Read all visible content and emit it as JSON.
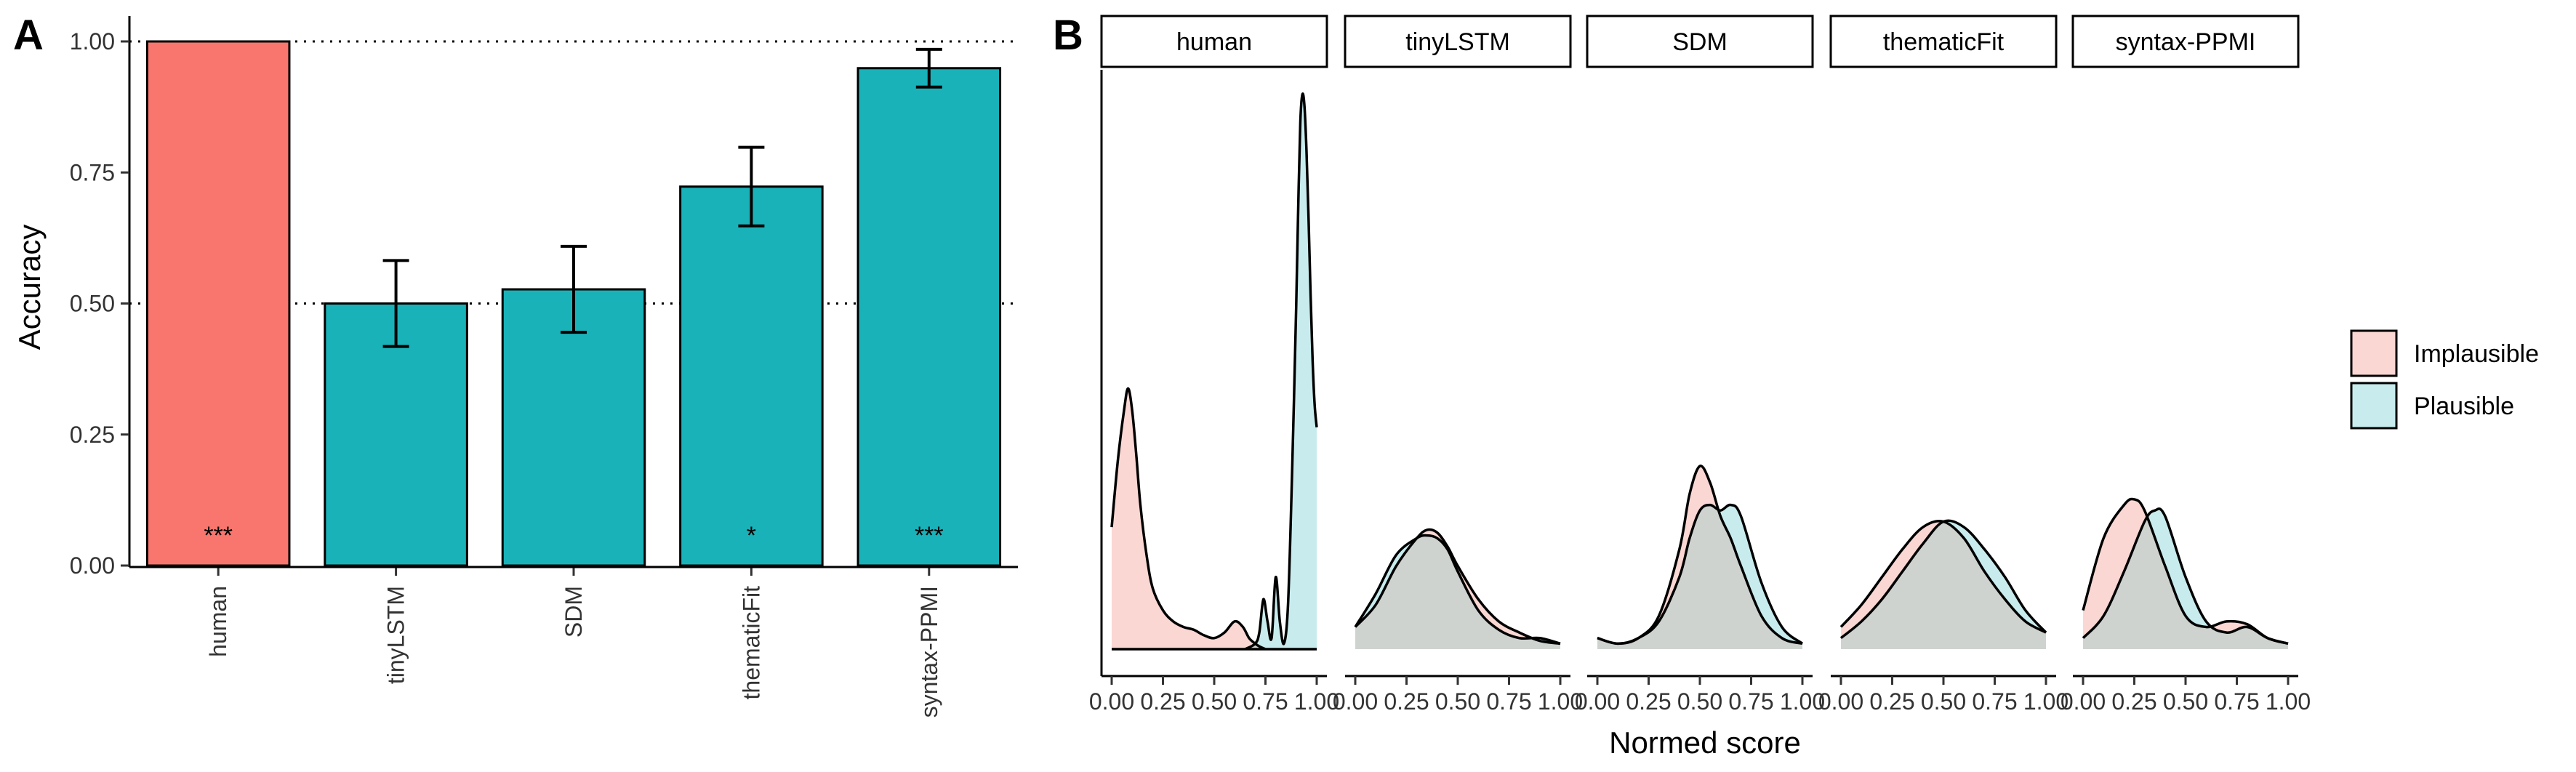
{
  "panel_a": {
    "letter": "A",
    "chart_data": {
      "type": "bar",
      "categories": [
        "human",
        "tinyLSTM",
        "SDM",
        "thematicFit",
        "syntax-PPMI"
      ],
      "values": [
        1.0,
        0.5,
        0.527,
        0.723,
        0.949
      ],
      "error_low": [
        1.0,
        0.418,
        0.445,
        0.648,
        0.913
      ],
      "error_high": [
        1.0,
        0.582,
        0.609,
        0.798,
        0.985
      ],
      "significance": [
        "***",
        "",
        "",
        "*",
        "***"
      ],
      "bar_colors": [
        "#f8766d",
        "#19b2b9",
        "#19b2b9",
        "#19b2b9",
        "#19b2b9"
      ],
      "ylabel": "Accuracy",
      "ylim": [
        0,
        1
      ],
      "yticks": [
        "0.00",
        "0.25",
        "0.50",
        "0.75",
        "1.00"
      ],
      "reference_lines": [
        {
          "y": 1.0,
          "style": "dotted"
        },
        {
          "y": 0.5,
          "style": "dotted"
        }
      ],
      "grid": false
    }
  },
  "panel_b": {
    "letter": "B",
    "chart_data": {
      "type": "area",
      "facets": [
        "human",
        "tinyLSTM",
        "SDM",
        "thematicFit",
        "syntax-PPMI"
      ],
      "x": [
        0,
        0.05,
        0.1,
        0.15,
        0.2,
        0.25,
        0.3,
        0.35,
        0.4,
        0.45,
        0.5,
        0.55,
        0.6,
        0.65,
        0.7,
        0.75,
        0.8,
        0.85,
        0.9,
        0.95,
        1.0
      ],
      "xticks": [
        "0.00",
        "0.25",
        "0.50",
        "0.75",
        "1.00"
      ],
      "xlim": [
        0,
        1
      ],
      "xlabel": "Normed score",
      "ylim": [
        0,
        1
      ],
      "series_colors": {
        "Implausible": "#fad7d3",
        "Plausible": "#c8ecee",
        "overlap": "#cfd3d0"
      },
      "legend": {
        "position": "right",
        "entries": [
          "Implausible",
          "Plausible"
        ],
        "colors": [
          "#fad7d3",
          "#c8ecee"
        ]
      },
      "densities": [
        {
          "facet": "human",
          "series": [
            {
              "name": "Implausible",
              "x": [
                0,
                0.03,
                0.06,
                0.08,
                0.1,
                0.12,
                0.14,
                0.17,
                0.2,
                0.25,
                0.3,
                0.35,
                0.4,
                0.45,
                0.5,
                0.55,
                0.6,
                0.64,
                0.67,
                0.7,
                0.72,
                0.75
              ],
              "y": [
                0.22,
                0.34,
                0.43,
                0.47,
                0.43,
                0.35,
                0.26,
                0.17,
                0.11,
                0.07,
                0.05,
                0.04,
                0.035,
                0.025,
                0.02,
                0.03,
                0.05,
                0.04,
                0.02,
                0.01,
                0.005,
                0.0
              ]
            },
            {
              "name": "Plausible",
              "x": [
                0.65,
                0.7,
                0.72,
                0.74,
                0.76,
                0.78,
                0.8,
                0.82,
                0.84,
                0.86,
                0.88,
                0.9,
                0.91,
                0.92,
                0.93,
                0.94,
                0.95,
                0.96,
                0.97,
                0.98,
                0.99,
                1.0
              ],
              "y": [
                0.0,
                0.01,
                0.03,
                0.09,
                0.05,
                0.02,
                0.13,
                0.05,
                0.01,
                0.08,
                0.32,
                0.62,
                0.8,
                0.95,
                1.0,
                0.98,
                0.9,
                0.78,
                0.64,
                0.52,
                0.44,
                0.4
              ]
            }
          ]
        },
        {
          "facet": "tinyLSTM",
          "series": [
            {
              "name": "Implausible",
              "x": [
                0,
                0.1,
                0.2,
                0.3,
                0.35,
                0.4,
                0.45,
                0.5,
                0.6,
                0.7,
                0.8,
                0.9,
                1.0
              ],
              "y": [
                0.04,
                0.08,
                0.15,
                0.2,
                0.215,
                0.21,
                0.185,
                0.15,
                0.09,
                0.05,
                0.03,
                0.015,
                0.01
              ]
            },
            {
              "name": "Plausible",
              "x": [
                0,
                0.1,
                0.2,
                0.3,
                0.35,
                0.4,
                0.45,
                0.5,
                0.6,
                0.7,
                0.8,
                0.9,
                1.0
              ],
              "y": [
                0.04,
                0.1,
                0.17,
                0.2,
                0.205,
                0.2,
                0.18,
                0.14,
                0.07,
                0.035,
                0.02,
                0.02,
                0.01
              ]
            }
          ]
        },
        {
          "facet": "SDM",
          "series": [
            {
              "name": "Implausible",
              "x": [
                0,
                0.1,
                0.2,
                0.3,
                0.4,
                0.45,
                0.5,
                0.55,
                0.6,
                0.65,
                0.7,
                0.8,
                0.9,
                1.0
              ],
              "y": [
                0.02,
                0.01,
                0.02,
                0.06,
                0.18,
                0.28,
                0.33,
                0.3,
                0.24,
                0.2,
                0.15,
                0.06,
                0.02,
                0.01
              ]
            },
            {
              "name": "Plausible",
              "x": [
                0,
                0.1,
                0.2,
                0.3,
                0.4,
                0.45,
                0.5,
                0.55,
                0.6,
                0.65,
                0.7,
                0.8,
                0.9,
                1.0
              ],
              "y": [
                0.02,
                0.01,
                0.02,
                0.05,
                0.13,
                0.2,
                0.25,
                0.26,
                0.25,
                0.26,
                0.24,
                0.12,
                0.04,
                0.01
              ]
            }
          ]
        },
        {
          "facet": "thematicFit",
          "series": [
            {
              "name": "Implausible",
              "x": [
                0,
                0.1,
                0.2,
                0.3,
                0.4,
                0.5,
                0.6,
                0.7,
                0.8,
                0.9,
                1.0
              ],
              "y": [
                0.04,
                0.08,
                0.13,
                0.18,
                0.22,
                0.23,
                0.2,
                0.14,
                0.09,
                0.05,
                0.03
              ]
            },
            {
              "name": "Plausible",
              "x": [
                0,
                0.1,
                0.2,
                0.3,
                0.4,
                0.5,
                0.6,
                0.7,
                0.8,
                0.9,
                1.0
              ],
              "y": [
                0.02,
                0.05,
                0.09,
                0.14,
                0.19,
                0.23,
                0.22,
                0.18,
                0.13,
                0.07,
                0.03
              ]
            }
          ]
        },
        {
          "facet": "syntax-PPMI",
          "series": [
            {
              "name": "Implausible",
              "x": [
                0,
                0.1,
                0.2,
                0.25,
                0.3,
                0.4,
                0.5,
                0.6,
                0.7,
                0.8,
                0.9,
                1.0
              ],
              "y": [
                0.07,
                0.2,
                0.26,
                0.27,
                0.25,
                0.15,
                0.06,
                0.04,
                0.05,
                0.045,
                0.02,
                0.01
              ]
            },
            {
              "name": "Plausible",
              "x": [
                0,
                0.1,
                0.2,
                0.3,
                0.35,
                0.4,
                0.5,
                0.6,
                0.7,
                0.8,
                0.9,
                1.0
              ],
              "y": [
                0.02,
                0.06,
                0.14,
                0.23,
                0.25,
                0.24,
                0.13,
                0.05,
                0.03,
                0.04,
                0.02,
                0.01
              ]
            }
          ]
        }
      ]
    }
  }
}
